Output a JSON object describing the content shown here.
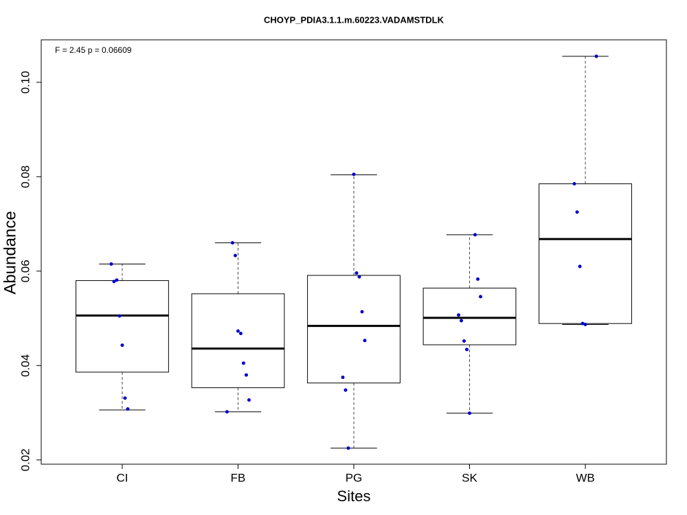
{
  "chart_data": {
    "type": "box",
    "title": "CHOYP_PDIA3.1.1.m.60223.VADAMSTDLK",
    "annotation": "F = 2.45 p = 0.06609",
    "x_label": "Sites",
    "y_label": "Abundance",
    "categories": [
      "CI",
      "FB",
      "PG",
      "SK",
      "WB"
    ],
    "boxes": [
      {
        "whisker_low": 0.0306,
        "q1": 0.0386,
        "median": 0.0506,
        "q3": 0.058,
        "whisker_high": 0.0615
      },
      {
        "whisker_low": 0.0302,
        "q1": 0.0353,
        "median": 0.0436,
        "q3": 0.0552,
        "whisker_high": 0.066
      },
      {
        "whisker_low": 0.0225,
        "q1": 0.0363,
        "median": 0.0484,
        "q3": 0.0591,
        "whisker_high": 0.0804
      },
      {
        "whisker_low": 0.0299,
        "q1": 0.0444,
        "median": 0.0501,
        "q3": 0.0564,
        "whisker_high": 0.0677
      },
      {
        "whisker_low": 0.0487,
        "q1": 0.0489,
        "median": 0.0668,
        "q3": 0.0785,
        "whisker_high": 0.1055
      }
    ],
    "points": [
      [
        0.0615,
        0.0578,
        0.0581,
        0.0505,
        0.0443,
        0.0331,
        0.0308
      ],
      [
        0.066,
        0.0633,
        0.0473,
        0.0468,
        0.0405,
        0.038,
        0.0327,
        0.0302
      ],
      [
        0.0805,
        0.0596,
        0.0588,
        0.0514,
        0.0453,
        0.0375,
        0.0348,
        0.0225
      ],
      [
        0.0677,
        0.0583,
        0.0546,
        0.0507,
        0.0495,
        0.0452,
        0.0434,
        0.0299
      ],
      [
        0.1055,
        0.0785,
        0.0725,
        0.061,
        0.0489,
        0.0487
      ]
    ],
    "point_color": "#0000cc",
    "ylim": [
      0.0191,
      0.109
    ],
    "yticks": [
      0.02,
      0.04,
      0.06,
      0.08,
      {
        "value": 0.1,
        "label": "0.10"
      }
    ]
  }
}
